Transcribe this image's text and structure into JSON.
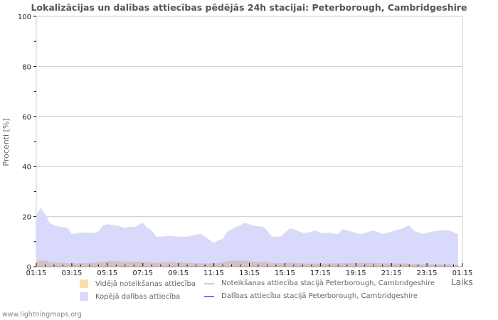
{
  "title": "Lokalizācijas un dalības attiecības pēdējās 24h stacijai: Peterborough, Cambridgeshire",
  "footer": "www.lightningmaps.org",
  "colors": {
    "avg_detection_fill": "#f9dfa8",
    "total_participation_fill": "#d9d9fb",
    "detection_line": "#f7c77a",
    "participation_line": "#7b72d6",
    "overlap_fill": "#d7c0c0",
    "grid": "#cccccc"
  },
  "legend": {
    "items": [
      {
        "label": "Vidējā noteikšanas attiecība",
        "type": "area",
        "color": "#f9dfa8"
      },
      {
        "label": "Noteikšanas attiecība stacijā Peterborough, Cambridgeshire",
        "type": "line",
        "color": "#f7c77a"
      },
      {
        "label": "Kopējā dalības attiecība",
        "type": "area",
        "color": "#d9d9fb"
      },
      {
        "label": "Dalības attiecība stacijā Peterborough, Cambridgeshire",
        "type": "line",
        "color": "#7b72d6"
      }
    ]
  },
  "chart_data": {
    "type": "area",
    "title": "Lokalizācijas un dalības attiecības pēdējās 24h stacijai: Peterborough, Cambridgeshire",
    "xlabel": "Laiks",
    "ylabel": "Procenti   [%]",
    "ylim": [
      0,
      100
    ],
    "yticks": [
      0,
      20,
      40,
      60,
      80,
      100
    ],
    "xticks": [
      "01:15",
      "03:15",
      "05:15",
      "07:15",
      "09:15",
      "11:15",
      "13:15",
      "15:15",
      "17:15",
      "19:15",
      "21:15",
      "23:15",
      "01:15"
    ],
    "grid": true,
    "legend_position": "bottom",
    "x_hours": [
      0,
      0.25,
      0.5,
      0.75,
      1.0,
      1.5,
      1.75,
      2.0,
      2.5,
      3.25,
      3.5,
      3.75,
      4.0,
      4.5,
      4.75,
      5.0,
      5.25,
      5.5,
      6.0,
      6.25,
      6.5,
      6.75,
      7.0,
      7.5,
      8.0,
      8.5,
      9.0,
      9.25,
      9.5,
      10.0,
      10.25,
      10.5,
      10.75,
      11.25,
      11.75,
      12.0,
      12.25,
      12.75,
      13.0,
      13.25,
      13.75,
      14.25,
      14.5,
      15.0,
      15.25,
      15.75,
      16.0,
      16.5,
      17.0,
      17.25,
      17.75,
      18.25,
      18.5,
      19.0,
      19.5,
      19.75,
      20.25,
      20.5,
      21.0,
      21.25,
      21.75,
      22.25,
      22.75,
      23.25,
      23.75
    ],
    "series": [
      {
        "name": "Kopējā dalības attiecība",
        "values": [
          20.5,
          23.5,
          21.0,
          17.5,
          16.5,
          15.8,
          15.5,
          13.0,
          13.6,
          13.5,
          14.0,
          16.5,
          17.0,
          16.5,
          16.0,
          15.5,
          16.0,
          15.8,
          17.5,
          15.5,
          14.5,
          12.0,
          12.0,
          12.3,
          12.0,
          12.0,
          12.8,
          13.0,
          12.0,
          9.5,
          10.5,
          11.0,
          14.0,
          15.8,
          17.5,
          17.0,
          16.3,
          16.0,
          14.5,
          12.0,
          12.0,
          15.2,
          15.0,
          13.5,
          13.5,
          14.5,
          13.5,
          13.5,
          13.0,
          15.0,
          14.0,
          13.0,
          13.5,
          14.5,
          13.0,
          13.5,
          14.5,
          15.0,
          16.5,
          14.5,
          13.0,
          14.0,
          14.5,
          14.5,
          13.0
        ]
      },
      {
        "name": "Vidējā noteikšanas attiecība",
        "values": [
          2.0,
          2.5,
          2.5,
          1.8,
          1.6,
          1.5,
          1.4,
          1.2,
          1.4,
          1.5,
          1.8,
          2.0,
          2.2,
          2.2,
          2.0,
          2.1,
          1.9,
          2.0,
          1.9,
          1.8,
          1.6,
          1.5,
          1.7,
          1.8,
          1.7,
          1.5,
          1.4,
          1.3,
          1.3,
          1.3,
          1.4,
          1.7,
          2.2,
          2.4,
          2.5,
          2.3,
          2.0,
          1.9,
          1.8,
          1.5,
          1.4,
          1.6,
          1.5,
          1.4,
          1.2,
          1.2,
          1.2,
          1.3,
          1.4,
          1.4,
          1.5,
          1.5,
          1.5,
          1.5,
          1.4,
          1.3,
          1.3,
          1.3,
          1.2,
          1.1,
          1.0,
          1.0,
          0.9,
          0.9,
          0.8
        ]
      },
      {
        "name": "Noteikšanas attiecība stacijā Peterborough, Cambridgeshire",
        "values": []
      },
      {
        "name": "Dalības attiecība stacijā Peterborough, Cambridgeshire",
        "values": []
      }
    ]
  }
}
